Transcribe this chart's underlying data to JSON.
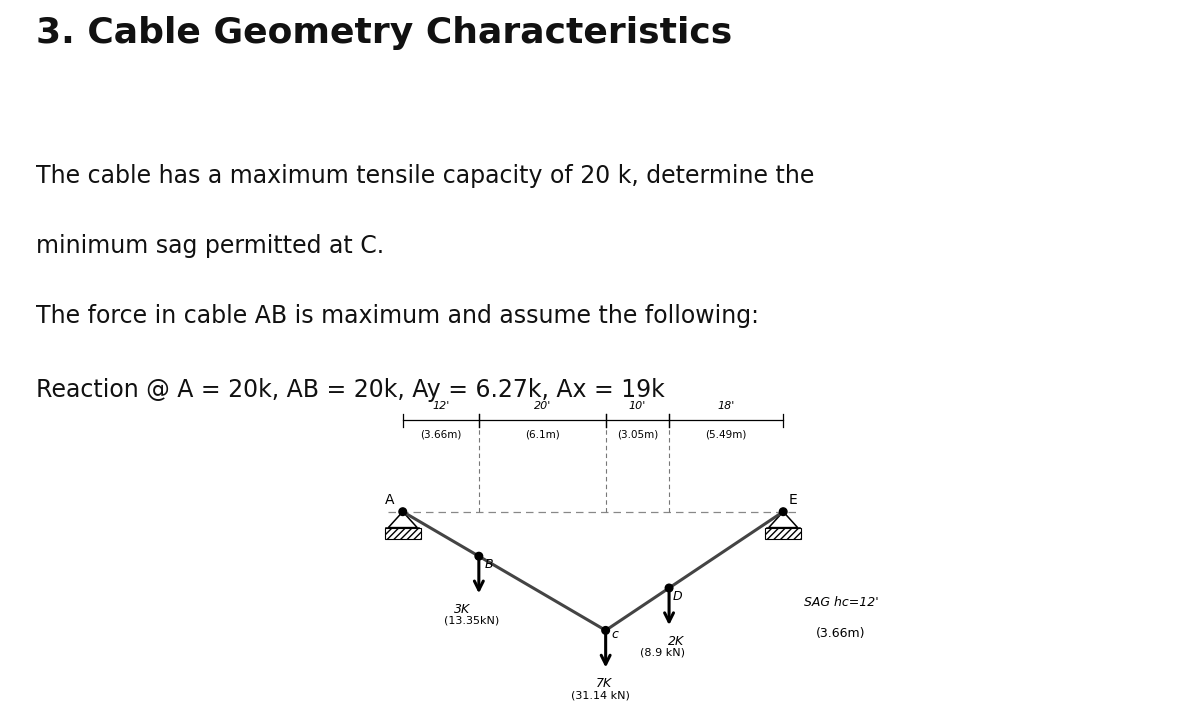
{
  "title": "3. Cable Geometry Characteristics",
  "para1": "The cable has a maximum tensile capacity of 20 k, determine the",
  "para1b": "minimum sag permitted at C.",
  "para2": "The force in cable AB is maximum and assume the following:",
  "para3": "Reaction @ A = 20k, AB = 20k, Ay = 6.27k, Ax = 19k",
  "bg_color": "#ffffff",
  "title_fontsize": 26,
  "text_fontsize": 17,
  "dim_labels": [
    "12'",
    "20'",
    "10'",
    "18'"
  ],
  "dim_labels_metric": [
    "(3.66m)",
    "(6.1m)",
    "(3.05m)",
    "(5.49m)"
  ],
  "load_labels": [
    "3K",
    "7K",
    "2K"
  ],
  "load_labels_metric": [
    "(13.35kN)",
    "(31.14 kN)",
    "(8.9 kN)"
  ],
  "sag_label": "SAG hc=12'",
  "sag_label_metric": "(3.66m)",
  "cable_color": "#444444",
  "support_hatch_color": "#555555",
  "text_color": "#111111"
}
